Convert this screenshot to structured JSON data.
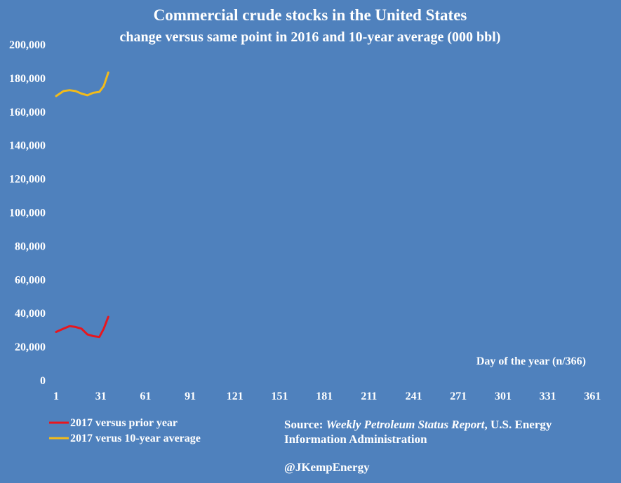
{
  "chart_data": {
    "type": "line",
    "title": "Commercial crude stocks in the United States",
    "subtitle": "change versus same point in 2016 and 10-year average (000 bbl)",
    "xlabel": "Day of the year (n/366)",
    "ylabel": "",
    "xlim": [
      1,
      366
    ],
    "ylim": [
      0,
      200000
    ],
    "x_ticks": [
      1,
      31,
      61,
      91,
      121,
      151,
      181,
      211,
      241,
      271,
      301,
      331,
      361
    ],
    "y_ticks": [
      0,
      20000,
      40000,
      60000,
      80000,
      100000,
      120000,
      140000,
      160000,
      180000,
      200000
    ],
    "y_tick_labels": [
      "0",
      "20,000",
      "40,000",
      "60,000",
      "80,000",
      "100,000",
      "120,000",
      "140,000",
      "160,000",
      "180,000",
      "200,000"
    ],
    "grid": false,
    "legend_position": "bottom-left",
    "series": [
      {
        "name": "2017 versus prior year",
        "color": "#e8161e",
        "x": [
          1,
          6,
          10,
          14,
          18,
          22,
          26,
          30,
          33,
          36
        ],
        "values": [
          29000,
          31000,
          32500,
          32000,
          31000,
          27500,
          26500,
          26000,
          31000,
          38000
        ]
      },
      {
        "name": "2017 verus 10-year average",
        "color": "#f2bb1a",
        "x": [
          1,
          6,
          10,
          14,
          18,
          22,
          26,
          30,
          33,
          36
        ],
        "values": [
          169500,
          172500,
          173000,
          172500,
          171000,
          170000,
          171500,
          172000,
          175500,
          183500
        ]
      }
    ]
  },
  "source": {
    "prefix": "Source: ",
    "publication": "Weekly Petroleum Status Report",
    "line1_suffix": ", U.S. Energy",
    "line2": "Information Administration"
  },
  "handle": "@JKempEnergy"
}
